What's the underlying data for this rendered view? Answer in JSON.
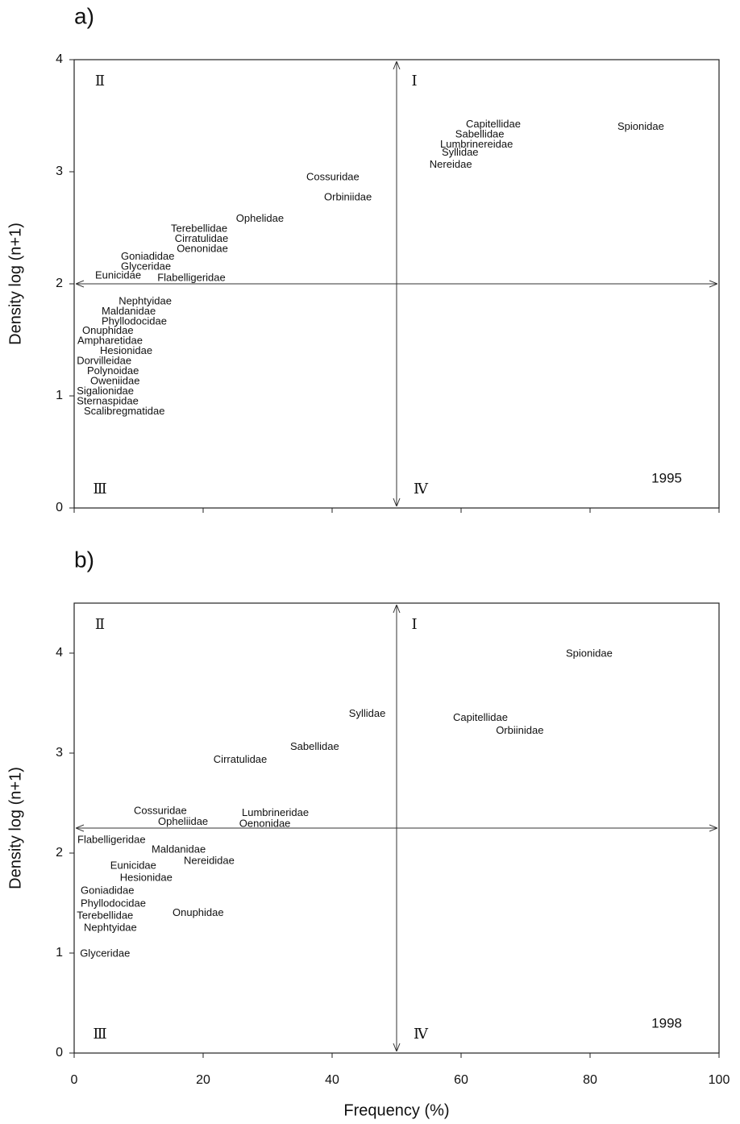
{
  "chart_data": [
    {
      "type": "scatter",
      "panel_label": "a)",
      "ylabel": "Density log (n+1)",
      "annotation": "1995",
      "quadrant_labels": {
        "I": "Ⅰ",
        "II": "Ⅱ",
        "III": "Ⅲ",
        "IV": "Ⅳ"
      },
      "x_split": 50,
      "y_split": 2,
      "xlim": [
        0,
        100
      ],
      "ylim": [
        0,
        4
      ],
      "xticks": [
        0,
        20,
        40,
        60,
        80,
        100
      ],
      "yticks": [
        0,
        1,
        2,
        3,
        4
      ],
      "labels": [
        "Capitellidae",
        "Sabellidae",
        "Lumbrinereidae",
        "Syllidae",
        "Nereidae",
        "Spionidae",
        "Cossuridae",
        "Orbiniidae",
        "Ophelidae",
        "Terebellidae",
        "Cirratulidae",
        "Oenonidae",
        "Goniadidae",
        "Glyceridae",
        "Eunicidae",
        "Flabelligeridae",
        "Nephtyidae",
        "Maldanidae",
        "Phyllodocidae",
        "Onuphidae",
        "Ampharetidae",
        "Hesionidae",
        "Dorvilleidae",
        "Polynoidae",
        "Oweniidae",
        "Sigalionidae",
        "Sternaspidae",
        "Scalibregmatidae"
      ],
      "x": [
        60.75,
        59.1,
        56.75,
        57,
        55.1,
        84.25,
        36,
        38.75,
        25.1,
        15,
        15.6,
        15.9,
        7.25,
        7.25,
        3.25,
        12.9,
        6.9,
        4.25,
        4.25,
        1.25,
        0.5,
        4,
        0.4,
        2,
        2.5,
        0.4,
        0.4,
        1.5
      ],
      "y": [
        3.42,
        3.33,
        3.24,
        3.17,
        3.06,
        3.4,
        2.95,
        2.77,
        2.58,
        2.49,
        2.4,
        2.31,
        2.24,
        2.15,
        2.07,
        2.05,
        1.84,
        1.75,
        1.66,
        1.58,
        1.49,
        1.4,
        1.31,
        1.22,
        1.13,
        1.04,
        0.95,
        0.86
      ]
    },
    {
      "type": "scatter",
      "panel_label": "b)",
      "ylabel": "Density log (n+1)",
      "xlabel": "Frequency (%)",
      "annotation": "1998",
      "quadrant_labels": {
        "I": "Ⅰ",
        "II": "Ⅱ",
        "III": "Ⅲ",
        "IV": "Ⅳ"
      },
      "x_split": 50,
      "y_split": 2.25,
      "xlim": [
        0,
        100
      ],
      "ylim": [
        0,
        4.5
      ],
      "xticks": [
        0,
        20,
        40,
        60,
        80,
        100
      ],
      "yticks": [
        0,
        1,
        2,
        3,
        4
      ],
      "labels": [
        "Spionidae",
        "Syllidae",
        "Capitellidae",
        "Orbiinidae",
        "Sabellidae",
        "Cirratulidae",
        "Cossuridae",
        "Lumbrineridae",
        "Opheliidae",
        "Oenonidae",
        "Flabelligeridae",
        "Maldanidae",
        "Nereididae",
        "Eunicidae",
        "Hesionidae",
        "Goniadidae",
        "Phyllodocidae",
        "Terebellidae",
        "Onuphidae",
        "Nephtyidae",
        "Glyceridae"
      ],
      "x": [
        76.25,
        42.6,
        58.75,
        65.4,
        33.5,
        21.6,
        9.25,
        26,
        13,
        25.6,
        0.5,
        12,
        17,
        5.6,
        7.1,
        1,
        1,
        0.4,
        15.25,
        1.5,
        0.9
      ],
      "y": [
        3.99,
        3.39,
        3.35,
        3.22,
        3.06,
        2.93,
        2.42,
        2.4,
        2.31,
        2.29,
        2.13,
        2.03,
        1.92,
        1.87,
        1.75,
        1.62,
        1.49,
        1.37,
        1.4,
        1.25,
        0.99
      ]
    }
  ]
}
